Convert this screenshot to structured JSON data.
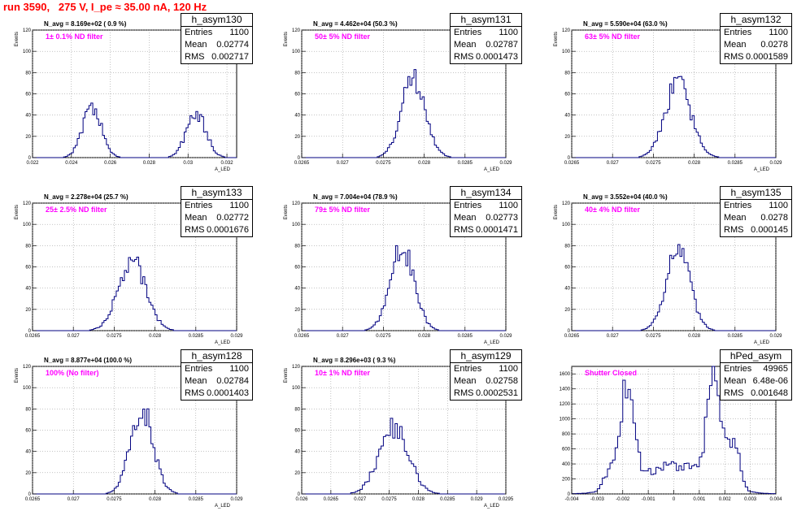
{
  "header": {
    "title": "run 3590,   275 V, I_pe ≈ 35.00 nA, 120 Hz"
  },
  "panels": [
    {
      "hist_title": "h_asym130",
      "navg": "N_avg = 8.169e+02 ( 0.9 %)",
      "filter": "1± 0.1% ND filter",
      "stats": {
        "entries_label": "Entries",
        "entries": "1100",
        "mean_label": "Mean",
        "mean": "0.02774",
        "rms_label": "RMS",
        "rms": "0.002717"
      },
      "ylabel": "Events",
      "xlabel": "A_LED",
      "chart_data": {
        "type": "bar",
        "xlim": [
          0.022,
          0.0325
        ],
        "ylim": [
          0,
          120
        ],
        "grid": true,
        "xticks": [
          "0.022",
          "0.024",
          "0.026",
          "0.028",
          "0.03",
          "0.032"
        ],
        "xtick_vals": [
          0.022,
          0.024,
          0.026,
          0.028,
          0.03,
          0.032
        ],
        "yticks": [
          "0",
          "20",
          "40",
          "60",
          "80",
          "100",
          "120"
        ],
        "ytick_vals": [
          0,
          20,
          40,
          60,
          80,
          100,
          120
        ],
        "peaks": [
          {
            "mu": 0.02505,
            "sigma": 0.00048,
            "amp": 48
          },
          {
            "mu": 0.03042,
            "sigma": 0.0005,
            "amp": 42
          }
        ],
        "bin_width": 0.0001,
        "seed": 130
      }
    },
    {
      "hist_title": "h_asym131",
      "navg": "N_avg = 4.462e+04 (50.3 %)",
      "filter": "50± 5% ND filter",
      "stats": {
        "entries_label": "Entries",
        "entries": "1100",
        "mean_label": "Mean",
        "mean": "0.02787",
        "rms_label": "RMS",
        "rms": "0.0001473"
      },
      "ylabel": "Events",
      "xlabel": "A_LED",
      "chart_data": {
        "type": "bar",
        "xlim": [
          0.0265,
          0.029
        ],
        "ylim": [
          0,
          120
        ],
        "grid": true,
        "xticks": [
          "0.0265",
          "0.027",
          "0.0275",
          "0.028",
          "0.0285",
          "0.029"
        ],
        "xtick_vals": [
          0.0265,
          0.027,
          0.0275,
          0.028,
          0.0285,
          0.029
        ],
        "yticks": [
          "0",
          "20",
          "40",
          "60",
          "80",
          "100",
          "120"
        ],
        "ytick_vals": [
          0,
          20,
          40,
          60,
          80,
          100,
          120
        ],
        "peaks": [
          {
            "mu": 0.02787,
            "sigma": 0.000147,
            "amp": 75
          }
        ],
        "bin_width": 2.5e-05,
        "seed": 131
      }
    },
    {
      "hist_title": "h_asym132",
      "navg": "N_avg = 5.590e+04 (63.0 %)",
      "filter": "63± 5% ND filter",
      "stats": {
        "entries_label": "Entries",
        "entries": "1100",
        "mean_label": "Mean",
        "mean": "0.0278",
        "rms_label": "RMS",
        "rms": "0.0001589"
      },
      "ylabel": "Events",
      "xlabel": "A_LED",
      "chart_data": {
        "type": "bar",
        "xlim": [
          0.0265,
          0.029
        ],
        "ylim": [
          0,
          120
        ],
        "grid": true,
        "xticks": [
          "0.0265",
          "0.027",
          "0.0275",
          "0.028",
          "0.0285",
          "0.029"
        ],
        "xtick_vals": [
          0.0265,
          0.027,
          0.0275,
          0.028,
          0.0285,
          0.029
        ],
        "yticks": [
          "0",
          "20",
          "40",
          "60",
          "80",
          "100",
          "120"
        ],
        "ytick_vals": [
          0,
          20,
          40,
          60,
          80,
          100,
          120
        ],
        "peaks": [
          {
            "mu": 0.0278,
            "sigma": 0.000159,
            "amp": 70
          }
        ],
        "bin_width": 2.5e-05,
        "seed": 132
      }
    },
    {
      "hist_title": "h_asym133",
      "navg": "N_avg = 2.278e+04 (25.7 %)",
      "filter": "25± 2.5% ND filter",
      "stats": {
        "entries_label": "Entries",
        "entries": "1100",
        "mean_label": "Mean",
        "mean": "0.02772",
        "rms_label": "RMS",
        "rms": "0.0001676"
      },
      "ylabel": "Events",
      "xlabel": "A_LED",
      "chart_data": {
        "type": "bar",
        "xlim": [
          0.0265,
          0.029
        ],
        "ylim": [
          0,
          120
        ],
        "grid": true,
        "xticks": [
          "0.0265",
          "0.027",
          "0.0275",
          "0.028",
          "0.0285",
          "0.029"
        ],
        "xtick_vals": [
          0.0265,
          0.027,
          0.0275,
          0.028,
          0.0285,
          0.029
        ],
        "yticks": [
          "0",
          "20",
          "40",
          "60",
          "80",
          "100",
          "120"
        ],
        "ytick_vals": [
          0,
          20,
          40,
          60,
          80,
          100,
          120
        ],
        "peaks": [
          {
            "mu": 0.02772,
            "sigma": 0.000168,
            "amp": 68
          }
        ],
        "bin_width": 2.5e-05,
        "seed": 133
      }
    },
    {
      "hist_title": "h_asym134",
      "navg": "N_avg = 7.004e+04 (78.9 %)",
      "filter": "79± 5% ND filter",
      "stats": {
        "entries_label": "Entries",
        "entries": "1100",
        "mean_label": "Mean",
        "mean": "0.02773",
        "rms_label": "RMS",
        "rms": "0.0001471"
      },
      "ylabel": "Events",
      "xlabel": "A_LED",
      "chart_data": {
        "type": "bar",
        "xlim": [
          0.0265,
          0.029
        ],
        "ylim": [
          0,
          120
        ],
        "grid": true,
        "xticks": [
          "0.0265",
          "0.027",
          "0.0275",
          "0.028",
          "0.0285",
          "0.029"
        ],
        "xtick_vals": [
          0.0265,
          0.027,
          0.0275,
          0.028,
          0.0285,
          0.029
        ],
        "yticks": [
          "0",
          "20",
          "40",
          "60",
          "80",
          "100",
          "120"
        ],
        "ytick_vals": [
          0,
          20,
          40,
          60,
          80,
          100,
          120
        ],
        "peaks": [
          {
            "mu": 0.02773,
            "sigma": 0.000147,
            "amp": 76
          }
        ],
        "bin_width": 2.5e-05,
        "seed": 134
      }
    },
    {
      "hist_title": "h_asym135",
      "navg": "N_avg = 3.552e+04 (40.0 %)",
      "filter": "40± 4% ND filter",
      "stats": {
        "entries_label": "Entries",
        "entries": "1100",
        "mean_label": "Mean",
        "mean": "0.0278",
        "rms_label": "RMS",
        "rms": "0.000145"
      },
      "ylabel": "Events",
      "xlabel": "A_LED",
      "chart_data": {
        "type": "bar",
        "xlim": [
          0.0265,
          0.029
        ],
        "ylim": [
          0,
          120
        ],
        "grid": true,
        "xticks": [
          "0.0265",
          "0.027",
          "0.0275",
          "0.028",
          "0.0285",
          "0.029"
        ],
        "xtick_vals": [
          0.0265,
          0.027,
          0.0275,
          0.028,
          0.0285,
          0.029
        ],
        "yticks": [
          "0",
          "20",
          "40",
          "60",
          "80",
          "100",
          "120"
        ],
        "ytick_vals": [
          0,
          20,
          40,
          60,
          80,
          100,
          120
        ],
        "peaks": [
          {
            "mu": 0.0278,
            "sigma": 0.000145,
            "amp": 76
          }
        ],
        "bin_width": 2.5e-05,
        "seed": 135
      }
    },
    {
      "hist_title": "h_asym128",
      "navg": "N_avg = 8.877e+04 (100.0 %)",
      "filter": "100% (No filter)",
      "stats": {
        "entries_label": "Entries",
        "entries": "1100",
        "mean_label": "Mean",
        "mean": "0.02784",
        "rms_label": "RMS",
        "rms": "0.0001403"
      },
      "ylabel": "Events",
      "xlabel": "A_LED",
      "chart_data": {
        "type": "bar",
        "xlim": [
          0.0265,
          0.029
        ],
        "ylim": [
          0,
          120
        ],
        "grid": true,
        "xticks": [
          "0.0265",
          "0.027",
          "0.0275",
          "0.028",
          "0.0285",
          "0.029"
        ],
        "xtick_vals": [
          0.0265,
          0.027,
          0.0275,
          0.028,
          0.0285,
          0.029
        ],
        "yticks": [
          "0",
          "20",
          "40",
          "60",
          "80",
          "100",
          "120"
        ],
        "ytick_vals": [
          0,
          20,
          40,
          60,
          80,
          100,
          120
        ],
        "peaks": [
          {
            "mu": 0.02784,
            "sigma": 0.00014,
            "amp": 78
          }
        ],
        "bin_width": 2.5e-05,
        "seed": 128
      }
    },
    {
      "hist_title": "h_asym129",
      "navg": "N_avg = 8.296e+03 ( 9.3 %)",
      "filter": "10± 1% ND filter",
      "stats": {
        "entries_label": "Entries",
        "entries": "1100",
        "mean_label": "Mean",
        "mean": "0.02758",
        "rms_label": "RMS",
        "rms": "0.0002531"
      },
      "ylabel": "Events",
      "xlabel": "A_LED",
      "chart_data": {
        "type": "bar",
        "xlim": [
          0.026,
          0.0295
        ],
        "ylim": [
          0,
          120
        ],
        "grid": true,
        "xticks": [
          "0.026",
          "0.0265",
          "0.027",
          "0.0275",
          "0.028",
          "0.0285",
          "0.029",
          "0.0295"
        ],
        "xtick_vals": [
          0.026,
          0.0265,
          0.027,
          0.0275,
          0.028,
          0.0285,
          0.029,
          0.0295
        ],
        "yticks": [
          "0",
          "20",
          "40",
          "60",
          "80",
          "100",
          "120"
        ],
        "ytick_vals": [
          0,
          20,
          40,
          60,
          80,
          100,
          120
        ],
        "peaks": [
          {
            "mu": 0.02758,
            "sigma": 0.00025,
            "amp": 63
          }
        ],
        "bin_width": 4e-05,
        "seed": 129
      }
    },
    {
      "hist_title": "hPed_asym",
      "navg": "",
      "filter": "Shutter Closed",
      "stats": {
        "entries_label": "Entries",
        "entries": "49965",
        "mean_label": "Mean",
        "mean": "6.48e-06",
        "rms_label": "RMS",
        "rms": "0.001648"
      },
      "ylabel": "",
      "xlabel": "",
      "chart_data": {
        "type": "bar",
        "xlim": [
          -0.004,
          0.004
        ],
        "ylim": [
          0,
          1700
        ],
        "grid": true,
        "xticks": [
          "-0.004",
          "-0.003",
          "-0.002",
          "-0.001",
          "0",
          "0.001",
          "0.002",
          "0.003",
          "0.004"
        ],
        "xtick_vals": [
          -0.004,
          -0.003,
          -0.002,
          -0.001,
          0,
          0.001,
          0.002,
          0.003,
          0.004
        ],
        "yticks": [
          "0",
          "200",
          "400",
          "600",
          "800",
          "1000",
          "1200",
          "1400",
          "1600"
        ],
        "ytick_vals": [
          0,
          200,
          400,
          600,
          800,
          1000,
          1200,
          1400,
          1600
        ],
        "peaks": [
          {
            "mu": -0.00185,
            "sigma": 0.00028,
            "amp": 1350
          },
          {
            "mu": 0.0016,
            "sigma": 0.00028,
            "amp": 1380
          },
          {
            "mu": -0.00255,
            "sigma": 0.00022,
            "amp": 200
          },
          {
            "mu": 0.00235,
            "sigma": 0.00022,
            "amp": 620
          },
          {
            "mu": 0.0,
            "sigma": 0.0013,
            "amp": 380
          }
        ],
        "bin_width": 0.0001,
        "seed": 200
      }
    }
  ]
}
